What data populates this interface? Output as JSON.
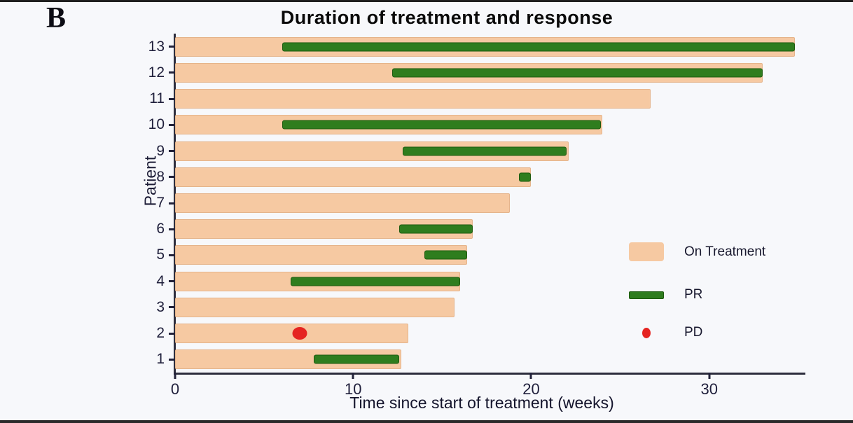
{
  "panel_label": "B",
  "title": "Duration of treatment and response",
  "xlabel": "Time since start of treatment (weeks)",
  "ylabel": "Patient",
  "legend": {
    "on_treatment_label": "On Treatment",
    "pr_label": "PR",
    "pd_label": "PD"
  },
  "colors": {
    "on_treatment": "#f6c9a2",
    "pr_fill": "#2f7d1e",
    "pr_border": "#1d5a0f",
    "pd": "#e52421",
    "axis": "#2d2d3d",
    "text": "#1c1c36",
    "background": "#f7f8fb"
  },
  "chart_data": {
    "type": "bar",
    "subtype": "swimmer-plot",
    "title": "Duration of treatment and response",
    "xlabel": "Time since start of treatment (weeks)",
    "ylabel": "Patient",
    "x_ticks": [
      0,
      10,
      20,
      30
    ],
    "xlim": [
      0,
      35.4
    ],
    "legend_position": "right",
    "grid": false,
    "series_legend": [
      "On Treatment",
      "PR",
      "PD"
    ],
    "patients": [
      {
        "id": "13",
        "on_treatment": [
          0,
          34.8
        ],
        "pr": [
          6.0,
          34.8
        ],
        "pd": null
      },
      {
        "id": "12",
        "on_treatment": [
          0,
          33.0
        ],
        "pr": [
          12.2,
          33.0
        ],
        "pd": null
      },
      {
        "id": "11",
        "on_treatment": [
          0,
          26.7
        ],
        "pr": null,
        "pd": null
      },
      {
        "id": "10",
        "on_treatment": [
          0,
          24.0
        ],
        "pr": [
          6.0,
          23.9
        ],
        "pd": null
      },
      {
        "id": "9",
        "on_treatment": [
          0,
          22.1
        ],
        "pr": [
          12.8,
          22.0
        ],
        "pd": null
      },
      {
        "id": "8",
        "on_treatment": [
          0,
          20.0
        ],
        "pr": [
          19.3,
          20.0
        ],
        "pd": null
      },
      {
        "id": "7",
        "on_treatment": [
          0,
          18.8
        ],
        "pr": null,
        "pd": null
      },
      {
        "id": "6",
        "on_treatment": [
          0,
          16.7
        ],
        "pr": [
          12.6,
          16.7
        ],
        "pd": null
      },
      {
        "id": "5",
        "on_treatment": [
          0,
          16.4
        ],
        "pr": [
          14.0,
          16.4
        ],
        "pd": null
      },
      {
        "id": "4",
        "on_treatment": [
          0,
          16.0
        ],
        "pr": [
          6.5,
          16.0
        ],
        "pd": null
      },
      {
        "id": "3",
        "on_treatment": [
          0,
          15.7
        ],
        "pr": null,
        "pd": null
      },
      {
        "id": "2",
        "on_treatment": [
          0,
          13.1
        ],
        "pr": null,
        "pd": 7.0
      },
      {
        "id": "1",
        "on_treatment": [
          0,
          12.7
        ],
        "pr": [
          7.8,
          12.6
        ],
        "pd": null
      }
    ]
  }
}
